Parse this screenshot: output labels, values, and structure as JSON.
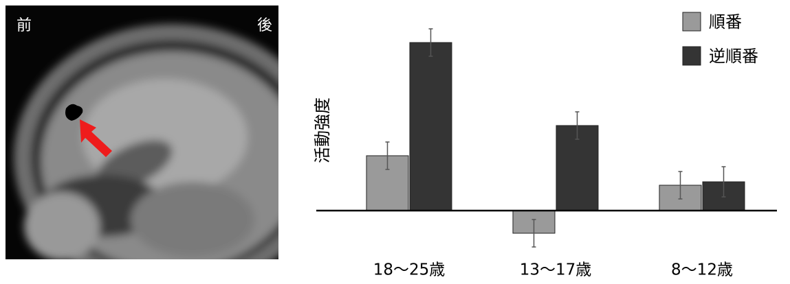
{
  "image": {
    "front_label": "前",
    "back_label": "後"
  },
  "chart_data": {
    "type": "bar",
    "y_label": "活動強度",
    "categories": [
      "18〜25歳",
      "13〜17歳",
      "8〜12歳"
    ],
    "series": [
      {
        "name": "順番",
        "color": "#9a9a9a",
        "values": [
          80,
          -33,
          37
        ],
        "errors": [
          20,
          20,
          20
        ]
      },
      {
        "name": "逆順番",
        "color": "#343434",
        "values": [
          245,
          124,
          42
        ],
        "errors": [
          20,
          20,
          22
        ]
      }
    ],
    "ylim": [
      -70,
      265
    ],
    "legend": "upper right"
  }
}
